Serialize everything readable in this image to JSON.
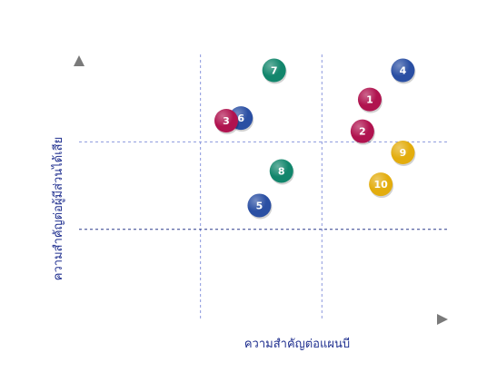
{
  "chart_data": {
    "type": "scatter",
    "xlabel": "ความสำคัญต่อแผนบี",
    "ylabel": "ความสำคัญต่อผู้มีส่วนได้เสีย",
    "xlim": [
      0,
      10
    ],
    "ylim": [
      0,
      10
    ],
    "x_dividers": [
      3.3,
      6.6
    ],
    "y_dividers": [
      3.4,
      6.7
    ],
    "grid": "quadrant dividers only",
    "legend": "none",
    "colors": {
      "crimson": "#b0134f",
      "blue": "#2a4fa3",
      "green": "#12866c",
      "gold": "#e3ad0e",
      "axis_gradient_start": "#1a33b8",
      "axis_gradient_end": "#777777"
    },
    "points": [
      {
        "label": "1",
        "x": 7.9,
        "y": 8.3,
        "color": "crimson"
      },
      {
        "label": "2",
        "x": 7.7,
        "y": 7.1,
        "color": "crimson"
      },
      {
        "label": "3",
        "x": 4.0,
        "y": 7.5,
        "color": "crimson"
      },
      {
        "label": "4",
        "x": 8.8,
        "y": 9.4,
        "color": "blue"
      },
      {
        "label": "5",
        "x": 4.9,
        "y": 4.3,
        "color": "blue"
      },
      {
        "label": "6",
        "x": 4.4,
        "y": 7.6,
        "color": "blue"
      },
      {
        "label": "7",
        "x": 5.3,
        "y": 9.4,
        "color": "green"
      },
      {
        "label": "8",
        "x": 5.5,
        "y": 5.6,
        "color": "green"
      },
      {
        "label": "9",
        "x": 8.8,
        "y": 6.3,
        "color": "gold"
      },
      {
        "label": "10",
        "x": 8.2,
        "y": 5.1,
        "color": "gold"
      }
    ]
  }
}
